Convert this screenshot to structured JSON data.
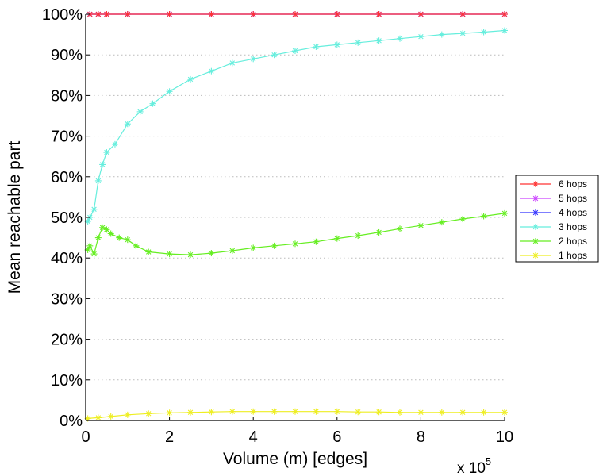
{
  "chart_data": {
    "type": "line",
    "xlabel": "Volume (m) [edges]",
    "ylabel": "Mean reachable part",
    "x_multiplier_label": "x 10",
    "x_multiplier_exponent": "5",
    "xlim": [
      0,
      10
    ],
    "ylim": [
      0,
      100
    ],
    "x_ticks": [
      "0",
      "2",
      "4",
      "6",
      "8",
      "10"
    ],
    "y_ticks": [
      "0%",
      "10%",
      "20%",
      "30%",
      "40%",
      "50%",
      "60%",
      "70%",
      "80%",
      "90%",
      "100%"
    ],
    "grid": "horizontal dotted",
    "legend_position": "right",
    "series": [
      {
        "name": "6 hops",
        "color": "#ff3333",
        "x": [
          0.1,
          0.3,
          0.5,
          1,
          2,
          3,
          4,
          5,
          6,
          7,
          8,
          9,
          10
        ],
        "values": [
          100,
          100,
          100,
          100,
          100,
          100,
          100,
          100,
          100,
          100,
          100,
          100,
          100
        ]
      },
      {
        "name": "5 hops",
        "color": "#cc44ff",
        "x": [
          0.1,
          0.3,
          0.5,
          1,
          2,
          3,
          4,
          5,
          6,
          7,
          8,
          9,
          10
        ],
        "values": [
          100,
          100,
          100,
          100,
          100,
          100,
          100,
          100,
          100,
          100,
          100,
          100,
          100
        ]
      },
      {
        "name": "4 hops",
        "color": "#3333ff",
        "x": [
          0.1,
          0.3,
          0.5,
          1,
          2,
          3,
          4,
          5,
          6,
          7,
          8,
          9,
          10
        ],
        "values": [
          100,
          100,
          100,
          100,
          100,
          100,
          100,
          100,
          100,
          100,
          100,
          100,
          100
        ]
      },
      {
        "name": "3 hops",
        "color": "#66eedd",
        "x": [
          0.05,
          0.1,
          0.2,
          0.3,
          0.4,
          0.5,
          0.7,
          1.0,
          1.3,
          1.6,
          2.0,
          2.5,
          3.0,
          3.5,
          4.0,
          4.5,
          5.0,
          5.5,
          6.0,
          6.5,
          7.0,
          7.5,
          8.0,
          8.5,
          9.0,
          9.5,
          10.0
        ],
        "values": [
          49,
          50,
          52,
          59,
          63,
          66,
          68,
          73,
          76,
          78,
          81,
          84,
          86,
          88,
          89,
          90,
          91,
          92,
          92.5,
          93,
          93.5,
          94,
          94.5,
          95,
          95.3,
          95.6,
          96
        ]
      },
      {
        "name": "2 hops",
        "color": "#66ee22",
        "x": [
          0.05,
          0.1,
          0.2,
          0.3,
          0.4,
          0.5,
          0.6,
          0.8,
          1.0,
          1.2,
          1.5,
          2.0,
          2.5,
          3.0,
          3.5,
          4.0,
          4.5,
          5.0,
          5.5,
          6.0,
          6.5,
          7.0,
          7.5,
          8.0,
          8.5,
          9.0,
          9.5,
          10.0
        ],
        "values": [
          42,
          43,
          41,
          45,
          47.5,
          47,
          46,
          45,
          44.5,
          43,
          41.5,
          41,
          40.8,
          41.2,
          41.8,
          42.5,
          43,
          43.5,
          44,
          44.8,
          45.5,
          46.3,
          47.2,
          48,
          48.8,
          49.6,
          50.3,
          51
        ]
      },
      {
        "name": "1 hops",
        "color": "#eeee22",
        "x": [
          0.05,
          0.3,
          0.6,
          1.0,
          1.5,
          2.0,
          2.5,
          3.0,
          3.5,
          4.0,
          4.5,
          5.0,
          5.5,
          6.0,
          6.5,
          7.0,
          7.5,
          8.0,
          8.5,
          9.0,
          9.5,
          10.0
        ],
        "values": [
          0.5,
          0.7,
          1.0,
          1.4,
          1.7,
          1.9,
          2.0,
          2.1,
          2.2,
          2.2,
          2.2,
          2.2,
          2.2,
          2.2,
          2.1,
          2.1,
          2.0,
          2.0,
          2.0,
          2.0,
          2.0,
          2.0
        ]
      }
    ]
  }
}
